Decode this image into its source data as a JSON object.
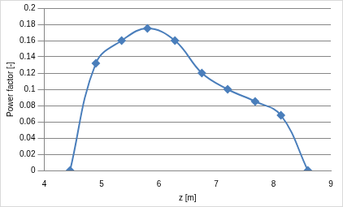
{
  "chart_data": {
    "type": "line",
    "x_label": "z [m]",
    "y_label": "Power factor [-]",
    "x": [
      4.45,
      4.9,
      5.35,
      5.8,
      6.28,
      6.75,
      7.2,
      7.68,
      8.13,
      8.6
    ],
    "values": [
      0,
      0.132,
      0.16,
      0.175,
      0.16,
      0.12,
      0.1,
      0.085,
      0.068,
      0
    ],
    "color": "#4a7ebb",
    "marker": "diamond",
    "line_style": "solid",
    "xlim": [
      4,
      9
    ],
    "xticks": [
      4,
      5,
      6,
      7,
      8,
      9
    ],
    "ylim": [
      0,
      0.2
    ],
    "yticks": [
      0,
      0.02,
      0.04,
      0.06,
      0.08,
      0.1,
      0.12,
      0.14,
      0.16,
      0.18,
      0.2
    ],
    "grid": true
  }
}
